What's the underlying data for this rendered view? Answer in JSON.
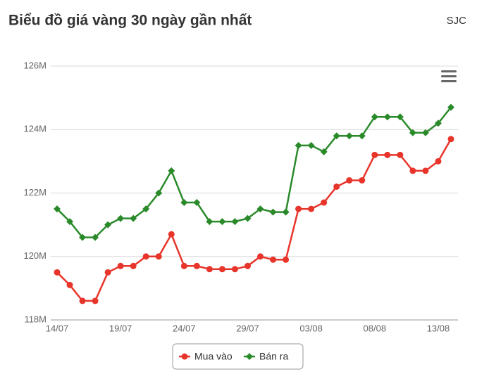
{
  "header": {
    "title": "Biểu đồ giá vàng 30 ngày gần nhất",
    "source": "SJC"
  },
  "chart_data": {
    "type": "line",
    "categories": [
      "14/07",
      null,
      null,
      null,
      null,
      "19/07",
      null,
      null,
      null,
      null,
      "24/07",
      null,
      null,
      null,
      null,
      "29/07",
      null,
      null,
      null,
      null,
      "03/08",
      null,
      null,
      null,
      null,
      "08/08",
      null,
      null,
      null,
      null,
      "13/08",
      null
    ],
    "series": [
      {
        "name": "Mua vào",
        "color": "#e8352b",
        "marker": "circle",
        "values": [
          119.5,
          119.1,
          118.6,
          118.6,
          119.5,
          119.7,
          119.7,
          120.0,
          120.0,
          120.7,
          119.7,
          119.7,
          119.6,
          119.6,
          119.6,
          119.7,
          120.0,
          119.9,
          119.9,
          121.5,
          121.5,
          121.7,
          122.2,
          122.4,
          122.4,
          123.2,
          123.2,
          123.2,
          122.7,
          122.7,
          123.0,
          123.7
        ]
      },
      {
        "name": "Bán ra",
        "color": "#2a8a2a",
        "marker": "diamond",
        "values": [
          121.5,
          121.1,
          120.6,
          120.6,
          121.0,
          121.2,
          121.2,
          121.5,
          122.0,
          122.7,
          121.7,
          121.7,
          121.1,
          121.1,
          121.1,
          121.2,
          121.5,
          121.4,
          121.4,
          123.5,
          123.5,
          123.3,
          123.8,
          123.8,
          123.8,
          124.4,
          124.4,
          124.4,
          123.9,
          123.9,
          124.2,
          124.7
        ]
      }
    ],
    "ylim": [
      118,
      126
    ],
    "yticks": [
      {
        "value": 118,
        "label": "118M"
      },
      {
        "value": 120,
        "label": "120M"
      },
      {
        "value": 122,
        "label": "122M"
      },
      {
        "value": 124,
        "label": "124M"
      },
      {
        "value": 126,
        "label": "126M"
      }
    ],
    "grid": true
  }
}
